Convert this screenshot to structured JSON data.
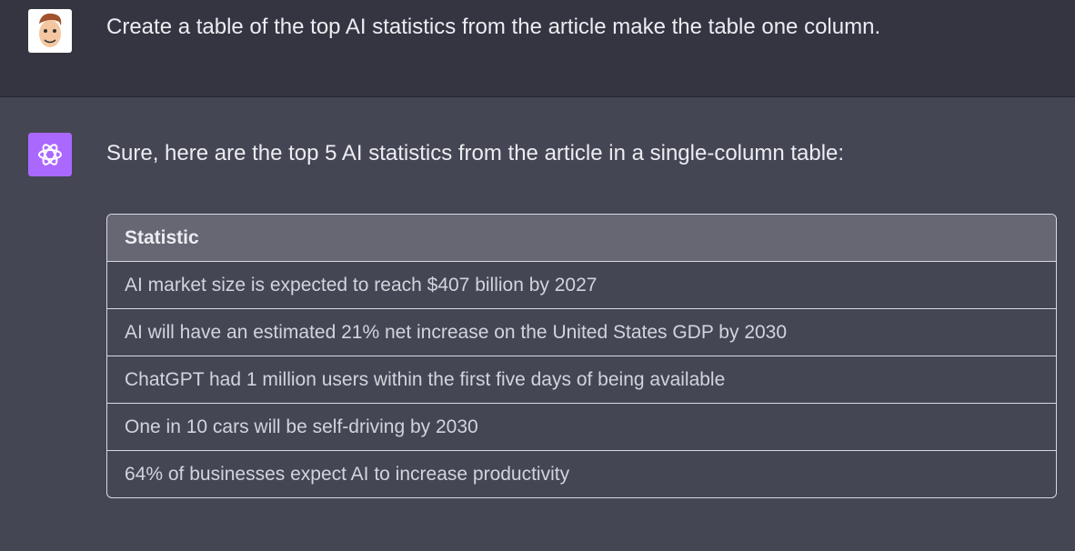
{
  "user_message": {
    "text": "Create a table of the top AI statistics from the article make the table one column."
  },
  "assistant_message": {
    "intro": "Sure, here are the top 5 AI statistics from the article in a single-column table:",
    "table": {
      "header": "Statistic",
      "rows": [
        "AI market size is expected to reach $407 billion by 2027",
        "AI will have an estimated 21% net increase on the United States GDP by 2030",
        "ChatGPT had 1 million users within the first five days of being available",
        "One in 10 cars will be self-driving by 2030",
        "64% of businesses expect AI to increase productivity"
      ]
    }
  }
}
